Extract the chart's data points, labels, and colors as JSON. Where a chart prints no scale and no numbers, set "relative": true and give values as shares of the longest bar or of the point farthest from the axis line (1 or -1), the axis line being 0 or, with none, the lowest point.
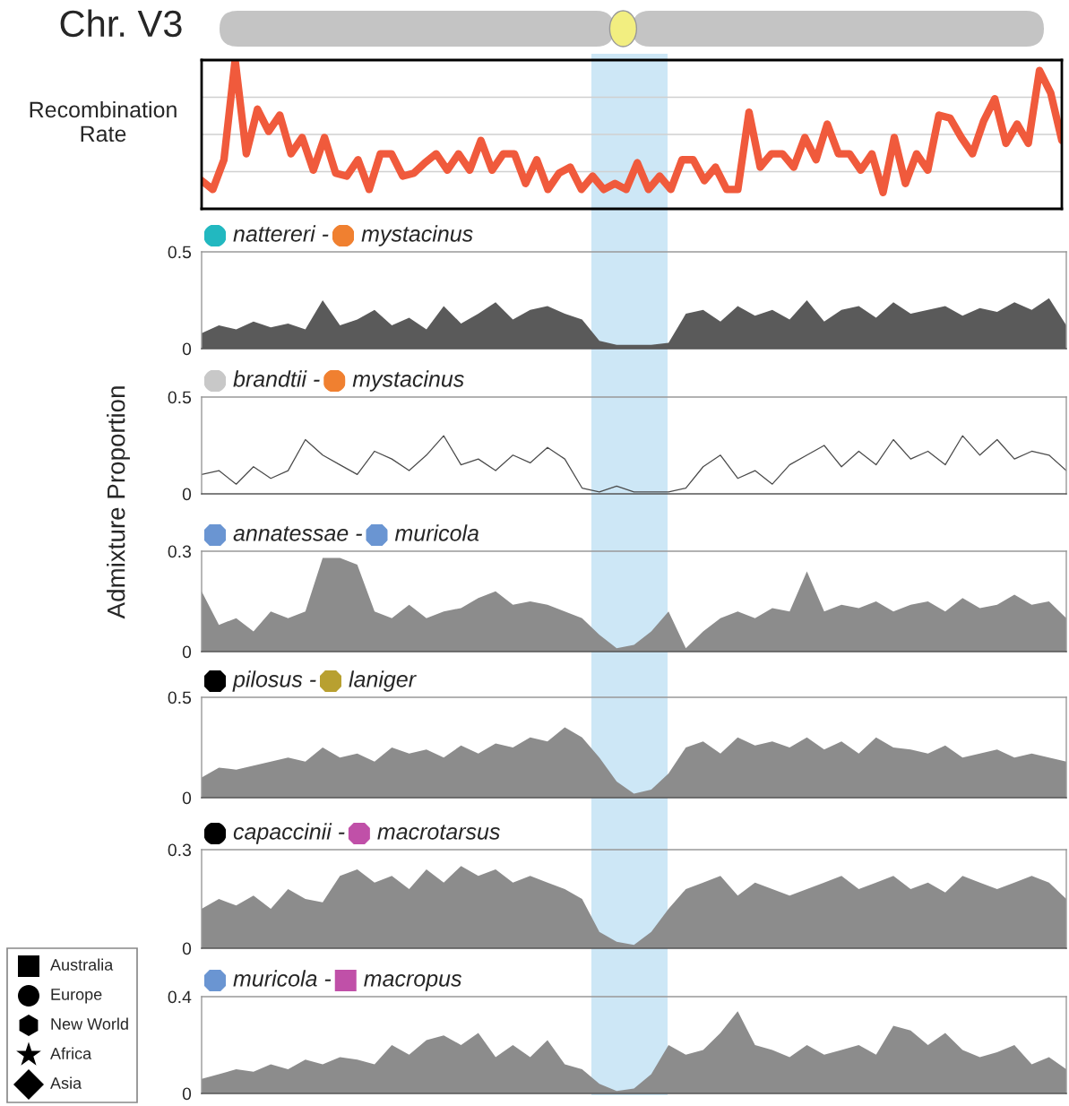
{
  "chart_data": [
    {
      "type": "line",
      "title": "Chr. V3",
      "ylabel": "Recombination Rate",
      "relative": true,
      "grid": "y",
      "tick_labels": false,
      "categories": [
        null,
        null,
        null,
        null,
        null,
        null,
        null,
        null,
        null,
        null,
        null,
        null,
        null,
        null,
        null,
        null,
        null,
        null,
        null,
        null,
        null,
        null,
        null,
        null,
        null,
        null,
        null,
        null,
        null,
        null,
        null,
        null,
        null,
        null,
        null,
        null,
        null,
        null,
        null,
        null,
        null,
        null,
        null,
        null,
        null,
        null,
        null,
        null,
        null,
        null,
        null,
        null,
        null,
        null,
        null,
        null,
        null,
        null,
        null,
        null,
        null,
        null,
        null,
        null,
        null,
        null,
        null,
        null,
        null,
        null,
        null,
        null,
        null,
        null,
        null,
        null,
        null,
        null
      ],
      "series": [
        {
          "color": "#f05a3c",
          "values": [
            0.19,
            0.13,
            0.33,
            1,
            0.37,
            0.67,
            0.52,
            0.63,
            0.37,
            0.48,
            0.26,
            0.48,
            0.24,
            0.22,
            0.33,
            0.13,
            0.37,
            0.37,
            0.22,
            0.24,
            0.31,
            0.37,
            0.26,
            0.37,
            0.26,
            0.46,
            0.26,
            0.37,
            0.37,
            0.17,
            0.33,
            0.13,
            0.24,
            0.28,
            0.13,
            0.22,
            0.13,
            0.17,
            0.13,
            0.31,
            0.13,
            0.22,
            0.13,
            0.33,
            0.33,
            0.19,
            0.28,
            0.13,
            0.13,
            0.65,
            0.28,
            0.37,
            0.37,
            0.28,
            0.48,
            0.33,
            0.57,
            0.37,
            0.37,
            0.26,
            0.37,
            0.11,
            0.48,
            0.17,
            0.37,
            0.26,
            0.63,
            0.61,
            0.48,
            0.37,
            0.59,
            0.74,
            0.44,
            0.57,
            0.44,
            0.93,
            0.78,
            0.46
          ]
        }
      ]
    },
    {
      "type": "area",
      "title": "nattereri - mystacinus",
      "ylabel": "Admixture Proportion",
      "tick_labels": "y",
      "ylim": [
        0,
        0.5
      ],
      "yticks": [
        0,
        0.5
      ],
      "categories": [
        null,
        null,
        null,
        null,
        null,
        null,
        null,
        null,
        null,
        null,
        null,
        null,
        null,
        null,
        null,
        null,
        null,
        null,
        null,
        null,
        null,
        null,
        null,
        null,
        null,
        null,
        null,
        null,
        null,
        null,
        null,
        null,
        null,
        null,
        null,
        null,
        null,
        null,
        null,
        null,
        null,
        null,
        null,
        null,
        null,
        null,
        null,
        null,
        null,
        null,
        null
      ],
      "series": [
        {
          "color": "#5a5a5a",
          "values": [
            0.08,
            0.12,
            0.1,
            0.14,
            0.11,
            0.13,
            0.1,
            0.25,
            0.12,
            0.15,
            0.2,
            0.12,
            0.16,
            0.1,
            0.22,
            0.13,
            0.18,
            0.24,
            0.15,
            0.2,
            0.22,
            0.18,
            0.15,
            0.04,
            0.02,
            0.02,
            0.02,
            0.03,
            0.18,
            0.2,
            0.14,
            0.22,
            0.17,
            0.2,
            0.15,
            0.25,
            0.14,
            0.2,
            0.22,
            0.16,
            0.24,
            0.18,
            0.2,
            0.22,
            0.17,
            0.21,
            0.19,
            0.24,
            0.2,
            0.26,
            0.12
          ]
        }
      ]
    },
    {
      "type": "line",
      "title": "brandtii - mystacinus",
      "tick_labels": "y",
      "ylim": [
        0,
        0.5
      ],
      "yticks": [
        0,
        0.5
      ],
      "categories": [
        null,
        null,
        null,
        null,
        null,
        null,
        null,
        null,
        null,
        null,
        null,
        null,
        null,
        null,
        null,
        null,
        null,
        null,
        null,
        null,
        null,
        null,
        null,
        null,
        null,
        null,
        null,
        null,
        null,
        null,
        null,
        null,
        null,
        null,
        null,
        null,
        null,
        null,
        null,
        null,
        null,
        null,
        null,
        null,
        null,
        null,
        null,
        null,
        null,
        null,
        null
      ],
      "series": [
        {
          "color": "#4a4a4a",
          "values": [
            0.1,
            0.12,
            0.05,
            0.14,
            0.08,
            0.12,
            0.28,
            0.2,
            0.15,
            0.1,
            0.22,
            0.18,
            0.12,
            0.2,
            0.3,
            0.15,
            0.18,
            0.12,
            0.2,
            0.16,
            0.24,
            0.18,
            0.03,
            0.01,
            0.04,
            0.01,
            0.01,
            0.01,
            0.03,
            0.14,
            0.2,
            0.08,
            0.12,
            0.05,
            0.15,
            0.2,
            0.25,
            0.14,
            0.22,
            0.15,
            0.28,
            0.18,
            0.22,
            0.15,
            0.3,
            0.2,
            0.28,
            0.18,
            0.22,
            0.2,
            0.12
          ]
        }
      ]
    },
    {
      "type": "area",
      "title": "annatessae - muricola",
      "tick_labels": "y",
      "ylim": [
        0,
        0.3
      ],
      "yticks": [
        0,
        0.3
      ],
      "categories": [
        null,
        null,
        null,
        null,
        null,
        null,
        null,
        null,
        null,
        null,
        null,
        null,
        null,
        null,
        null,
        null,
        null,
        null,
        null,
        null,
        null,
        null,
        null,
        null,
        null,
        null,
        null,
        null,
        null,
        null,
        null,
        null,
        null,
        null,
        null,
        null,
        null,
        null,
        null,
        null,
        null,
        null,
        null,
        null,
        null,
        null,
        null,
        null,
        null,
        null,
        null
      ],
      "series": [
        {
          "color": "#8c8c8c",
          "values": [
            0.18,
            0.08,
            0.1,
            0.06,
            0.12,
            0.1,
            0.12,
            0.28,
            0.28,
            0.26,
            0.12,
            0.1,
            0.14,
            0.1,
            0.12,
            0.13,
            0.16,
            0.18,
            0.14,
            0.15,
            0.14,
            0.12,
            0.1,
            0.05,
            0.01,
            0.02,
            0.06,
            0.12,
            0.01,
            0.06,
            0.1,
            0.12,
            0.1,
            0.13,
            0.12,
            0.24,
            0.12,
            0.14,
            0.13,
            0.15,
            0.12,
            0.14,
            0.15,
            0.12,
            0.16,
            0.13,
            0.14,
            0.17,
            0.14,
            0.15,
            0.1
          ]
        }
      ]
    },
    {
      "type": "area",
      "title": "pilosus - laniger",
      "tick_labels": "y",
      "ylim": [
        0,
        0.5
      ],
      "yticks": [
        0,
        0.5
      ],
      "categories": [
        null,
        null,
        null,
        null,
        null,
        null,
        null,
        null,
        null,
        null,
        null,
        null,
        null,
        null,
        null,
        null,
        null,
        null,
        null,
        null,
        null,
        null,
        null,
        null,
        null,
        null,
        null,
        null,
        null,
        null,
        null,
        null,
        null,
        null,
        null,
        null,
        null,
        null,
        null,
        null,
        null,
        null,
        null,
        null,
        null,
        null,
        null,
        null,
        null,
        null,
        null
      ],
      "series": [
        {
          "color": "#8c8c8c",
          "values": [
            0.1,
            0.15,
            0.14,
            0.16,
            0.18,
            0.2,
            0.18,
            0.25,
            0.2,
            0.22,
            0.18,
            0.25,
            0.22,
            0.24,
            0.2,
            0.26,
            0.22,
            0.27,
            0.25,
            0.3,
            0.28,
            0.35,
            0.3,
            0.2,
            0.08,
            0.02,
            0.04,
            0.12,
            0.25,
            0.28,
            0.22,
            0.3,
            0.26,
            0.28,
            0.25,
            0.3,
            0.24,
            0.28,
            0.22,
            0.3,
            0.25,
            0.24,
            0.22,
            0.26,
            0.2,
            0.22,
            0.24,
            0.2,
            0.22,
            0.2,
            0.18
          ]
        }
      ]
    },
    {
      "type": "area",
      "title": "capaccinii - macrotarsus",
      "tick_labels": "y",
      "ylim": [
        0,
        0.3
      ],
      "yticks": [
        0,
        0.3
      ],
      "categories": [
        null,
        null,
        null,
        null,
        null,
        null,
        null,
        null,
        null,
        null,
        null,
        null,
        null,
        null,
        null,
        null,
        null,
        null,
        null,
        null,
        null,
        null,
        null,
        null,
        null,
        null,
        null,
        null,
        null,
        null,
        null,
        null,
        null,
        null,
        null,
        null,
        null,
        null,
        null,
        null,
        null,
        null,
        null,
        null,
        null,
        null,
        null,
        null,
        null,
        null,
        null
      ],
      "series": [
        {
          "color": "#8c8c8c",
          "values": [
            0.12,
            0.15,
            0.13,
            0.16,
            0.12,
            0.18,
            0.15,
            0.14,
            0.22,
            0.24,
            0.2,
            0.22,
            0.18,
            0.24,
            0.2,
            0.25,
            0.22,
            0.24,
            0.2,
            0.22,
            0.2,
            0.18,
            0.15,
            0.05,
            0.02,
            0.01,
            0.05,
            0.12,
            0.18,
            0.2,
            0.22,
            0.16,
            0.2,
            0.18,
            0.16,
            0.18,
            0.2,
            0.22,
            0.18,
            0.2,
            0.22,
            0.18,
            0.2,
            0.17,
            0.22,
            0.2,
            0.18,
            0.2,
            0.22,
            0.2,
            0.15
          ]
        }
      ]
    },
    {
      "type": "area",
      "title": "muricola - macropus",
      "tick_labels": "y",
      "ylim": [
        0,
        0.4
      ],
      "yticks": [
        0,
        0.4
      ],
      "annotations": [
        "Australia",
        "Europe",
        "New World",
        "Africa",
        "Asia"
      ],
      "categories": [
        null,
        null,
        null,
        null,
        null,
        null,
        null,
        null,
        null,
        null,
        null,
        null,
        null,
        null,
        null,
        null,
        null,
        null,
        null,
        null,
        null,
        null,
        null,
        null,
        null,
        null,
        null,
        null,
        null,
        null,
        null,
        null,
        null,
        null,
        null,
        null,
        null,
        null,
        null,
        null,
        null,
        null,
        null,
        null,
        null,
        null,
        null,
        null,
        null,
        null,
        null
      ],
      "series": [
        {
          "color": "#8c8c8c",
          "values": [
            0.06,
            0.08,
            0.1,
            0.09,
            0.12,
            0.1,
            0.14,
            0.12,
            0.15,
            0.14,
            0.12,
            0.2,
            0.16,
            0.22,
            0.24,
            0.2,
            0.25,
            0.15,
            0.2,
            0.15,
            0.22,
            0.12,
            0.1,
            0.04,
            0.01,
            0.02,
            0.08,
            0.2,
            0.16,
            0.18,
            0.25,
            0.34,
            0.2,
            0.18,
            0.15,
            0.2,
            0.16,
            0.18,
            0.2,
            0.16,
            0.28,
            0.26,
            0.2,
            0.25,
            0.18,
            0.15,
            0.17,
            0.2,
            0.12,
            0.15,
            0.1
          ]
        }
      ]
    }
  ]
}
